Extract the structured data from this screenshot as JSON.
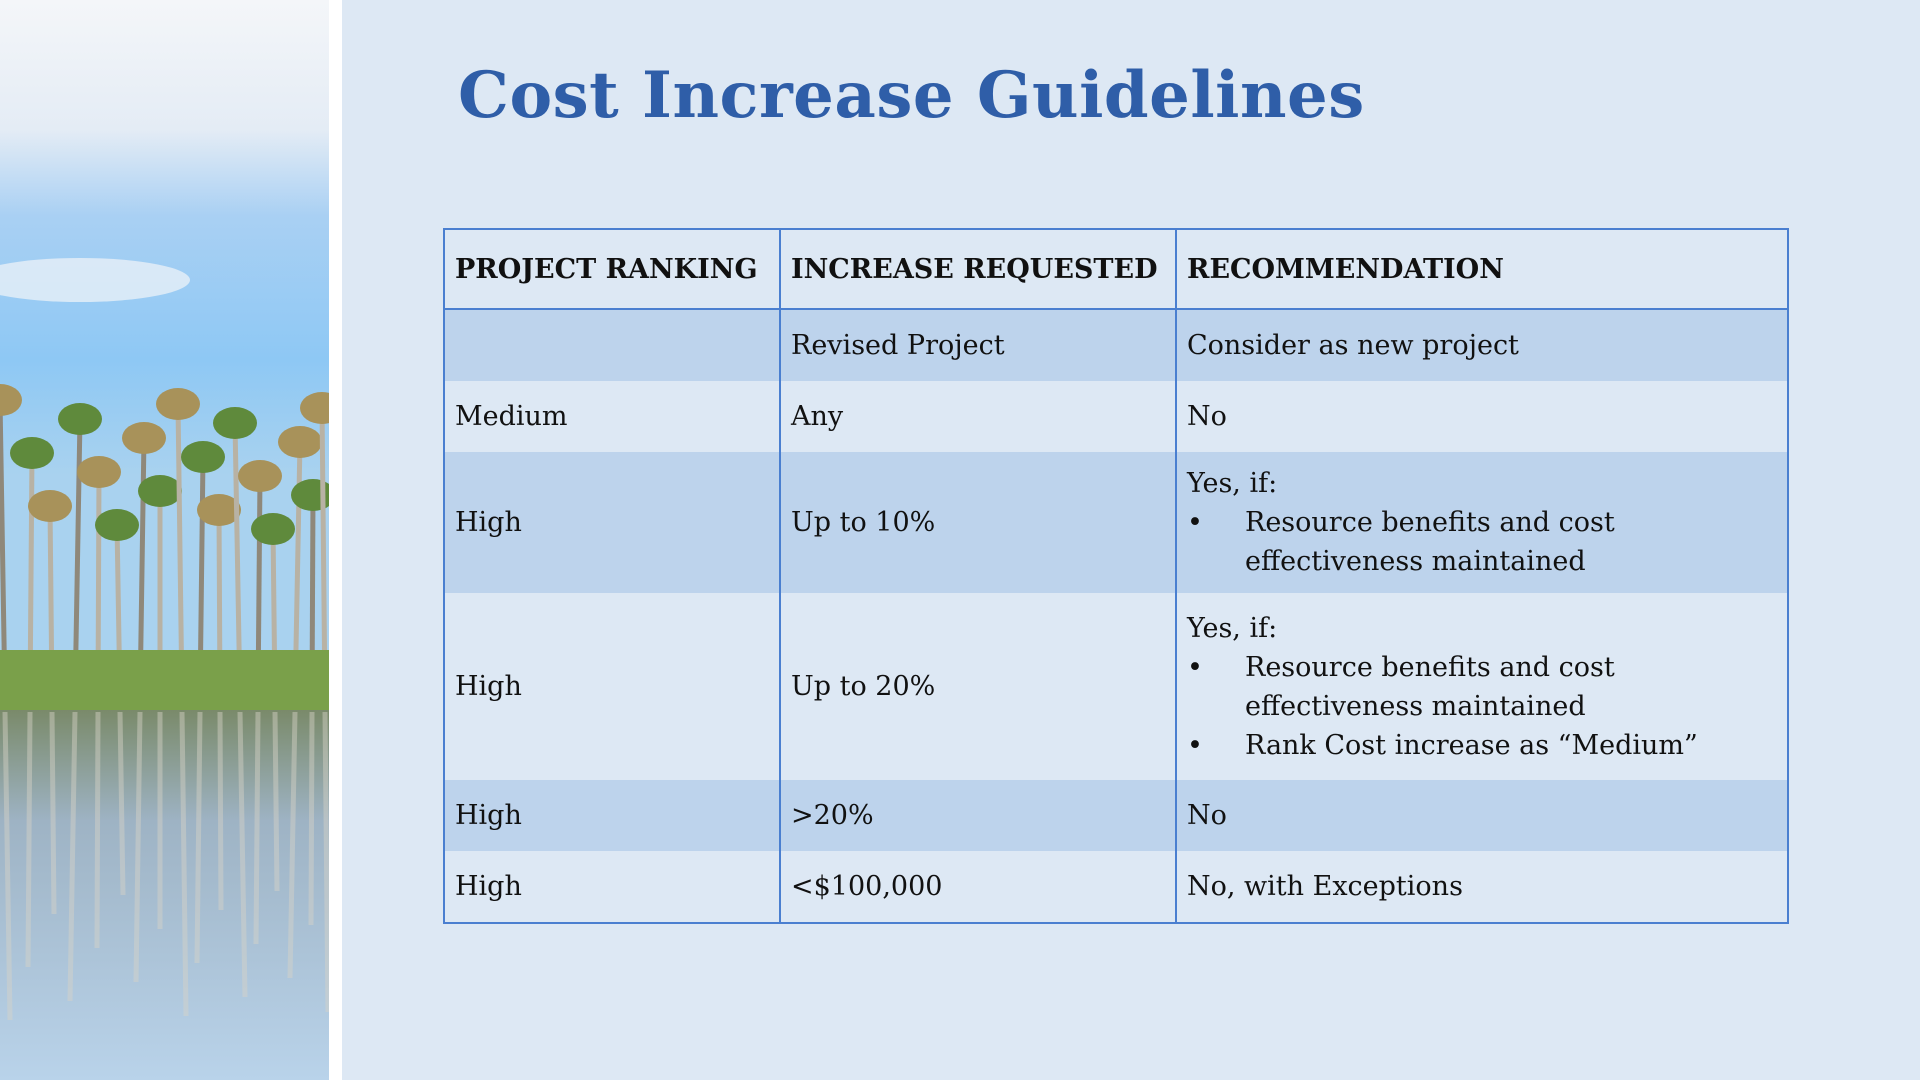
{
  "title": "Cost Increase Guidelines",
  "table": {
    "headers": [
      "PROJECT RANKING",
      "INCREASE REQUESTED",
      "RECOMMENDATION"
    ],
    "rows": [
      {
        "ranking": "",
        "increase": "Revised Project",
        "recommendation": {
          "intro": "Consider as new project",
          "bullets": []
        }
      },
      {
        "ranking": "Medium",
        "increase": "Any",
        "recommendation": {
          "intro": "No",
          "bullets": []
        }
      },
      {
        "ranking": "High",
        "increase": "Up to 10%",
        "recommendation": {
          "intro": "Yes, if:",
          "bullets": [
            "Resource benefits and cost effectiveness maintained"
          ]
        }
      },
      {
        "ranking": "High",
        "increase": "Up to 20%",
        "recommendation": {
          "intro": "Yes, if:",
          "bullets": [
            "Resource benefits and cost effectiveness maintained",
            "Rank Cost increase as “Medium”"
          ]
        }
      },
      {
        "ranking": "High",
        "increase": ">20%",
        "recommendation": {
          "intro": "No",
          "bullets": []
        }
      },
      {
        "ranking": "High",
        "increase": "<$100,000",
        "recommendation": {
          "intro": "No, with Exceptions",
          "bullets": []
        }
      }
    ]
  },
  "colors": {
    "title": "#2f5ea8",
    "border": "#4a7fd0",
    "band": "#bdd3ec",
    "background": "#dde8f4"
  }
}
